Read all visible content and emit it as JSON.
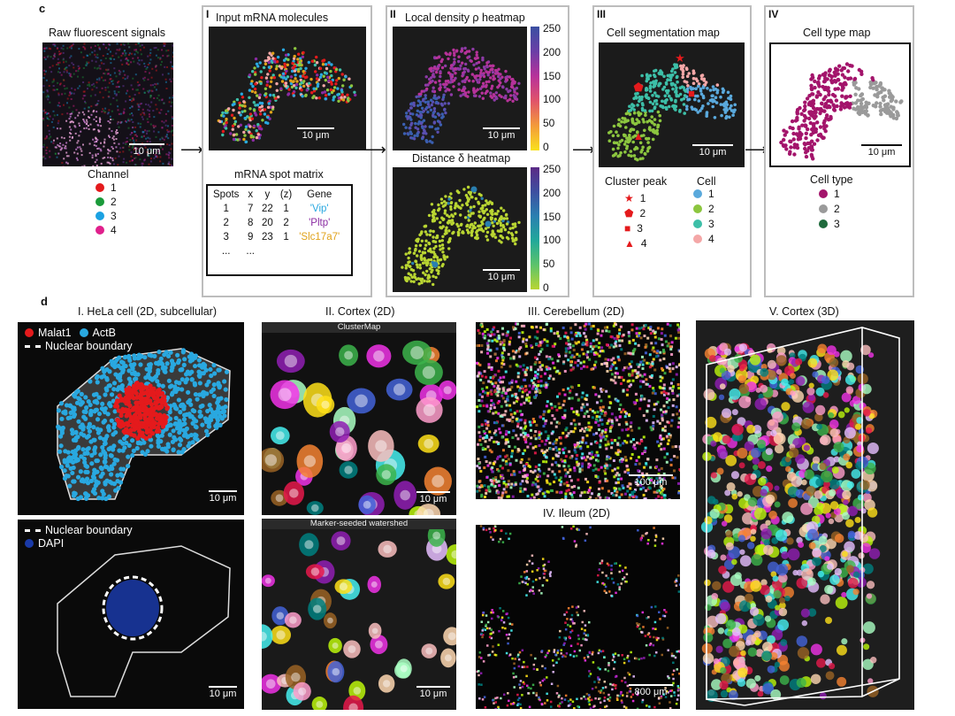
{
  "panel_c": {
    "letter": "c",
    "raw": {
      "title": "Raw fluorescent signals",
      "scale": "10 μm",
      "channel_title": "Channel",
      "channels": [
        {
          "label": "1",
          "color": "#e41a1c"
        },
        {
          "label": "2",
          "color": "#1a9a3a"
        },
        {
          "label": "3",
          "color": "#1ba1e2"
        },
        {
          "label": "4",
          "color": "#e0208c"
        }
      ]
    },
    "step1": {
      "roman": "I",
      "title": "Input mRNA molecules",
      "scale": "10 μm",
      "matrix_title": "mRNA spot matrix",
      "headers": [
        "Spots",
        "x",
        "y",
        "(z)",
        "Gene"
      ],
      "rows": [
        {
          "spot": "1",
          "x": "7",
          "y": "22",
          "z": "1",
          "gene": "'Vip'",
          "color": "#29a8e0"
        },
        {
          "spot": "2",
          "x": "8",
          "y": "20",
          "z": "2",
          "gene": "'Pltp'",
          "color": "#8a2ba2"
        },
        {
          "spot": "3",
          "x": "9",
          "y": "23",
          "z": "1",
          "gene": "'Slc17a7'",
          "color": "#e0a21a"
        },
        {
          "spot": "...",
          "x": "...",
          "y": "",
          "z": "",
          "gene": "",
          "color": "#111"
        }
      ]
    },
    "step2": {
      "roman": "II",
      "density_title": "Local density ρ heatmap",
      "density_ticks": [
        "250",
        "200",
        "150",
        "100",
        "50",
        "0"
      ],
      "density_scale": "10 μm",
      "distance_title": "Distance δ heatmap",
      "distance_ticks": [
        "250",
        "200",
        "150",
        "100",
        "50",
        "0"
      ],
      "distance_scale": "10 μm"
    },
    "step3": {
      "roman": "III",
      "title": "Cell segmentation map",
      "scale": "10 μm",
      "peak_title": "Cluster peak",
      "peaks": [
        {
          "label": "1",
          "symbol": "★"
        },
        {
          "label": "2",
          "symbol": "⬟"
        },
        {
          "label": "3",
          "symbol": "■"
        },
        {
          "label": "4",
          "symbol": "▲"
        }
      ],
      "peak_color": "#e41a1c",
      "cell_title": "Cell",
      "cells": [
        {
          "label": "1",
          "color": "#5aa9dc"
        },
        {
          "label": "2",
          "color": "#8cc63f"
        },
        {
          "label": "3",
          "color": "#3dbfa8"
        },
        {
          "label": "4",
          "color": "#f4a7a7"
        }
      ]
    },
    "step4": {
      "roman": "IV",
      "title": "Cell type map",
      "scale": "10 μm",
      "type_title": "Cell type",
      "types": [
        {
          "label": "1",
          "color": "#a3146b"
        },
        {
          "label": "2",
          "color": "#9a9a9a"
        },
        {
          "label": "3",
          "color": "#1f6a3c"
        }
      ]
    }
  },
  "panel_d": {
    "letter": "d",
    "hela": {
      "title": "I. HeLa cell (2D, subcellular)",
      "legend_malat1": "Malat1",
      "legend_actb": "ActB",
      "legend_nuclear_top": "Nuclear boundary",
      "legend_nuclear_bottom": "Nuclear boundary",
      "legend_dapi": "DAPI",
      "scale_top": "10 μm",
      "scale_bottom": "10 μm",
      "malat1_color": "#e41a1c",
      "actb_color": "#29a8e0",
      "dapi_color": "#1a3aa8"
    },
    "cortex2d": {
      "title": "II. Cortex (2D)",
      "banner_top": "ClusterMap",
      "banner_bottom": "Marker-seeded watershed",
      "scale_top": "10 μm",
      "scale_bottom": "10 μm"
    },
    "cerebellum": {
      "title": "III. Cerebellum (2D)",
      "scale": "100 μm"
    },
    "ileum": {
      "title": "IV. Ileum (2D)",
      "scale": "800 μm"
    },
    "cortex3d": {
      "title": "V. Cortex (3D)"
    }
  }
}
